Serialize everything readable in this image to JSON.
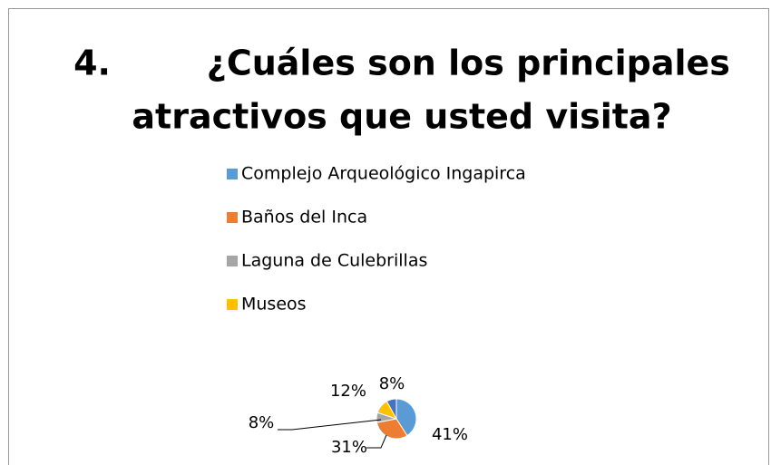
{
  "chart_data": {
    "type": "pie",
    "title": [
      "4.        ¿Cuáles son los principales",
      "atractivos que usted visita?"
    ],
    "categories": [
      "Complejo Arqueológico Ingapirca",
      "Baños del Inca",
      "Laguna de Culebrillas",
      "Museos",
      null
    ],
    "values": [
      41,
      31,
      8,
      12,
      8
    ],
    "value_labels": [
      "41%",
      "31%",
      "8%",
      "12%",
      "8%"
    ],
    "colors": [
      "#5b9bd5",
      "#ed7d31",
      "#a5a5a5",
      "#ffc000",
      "#4472c4"
    ]
  }
}
